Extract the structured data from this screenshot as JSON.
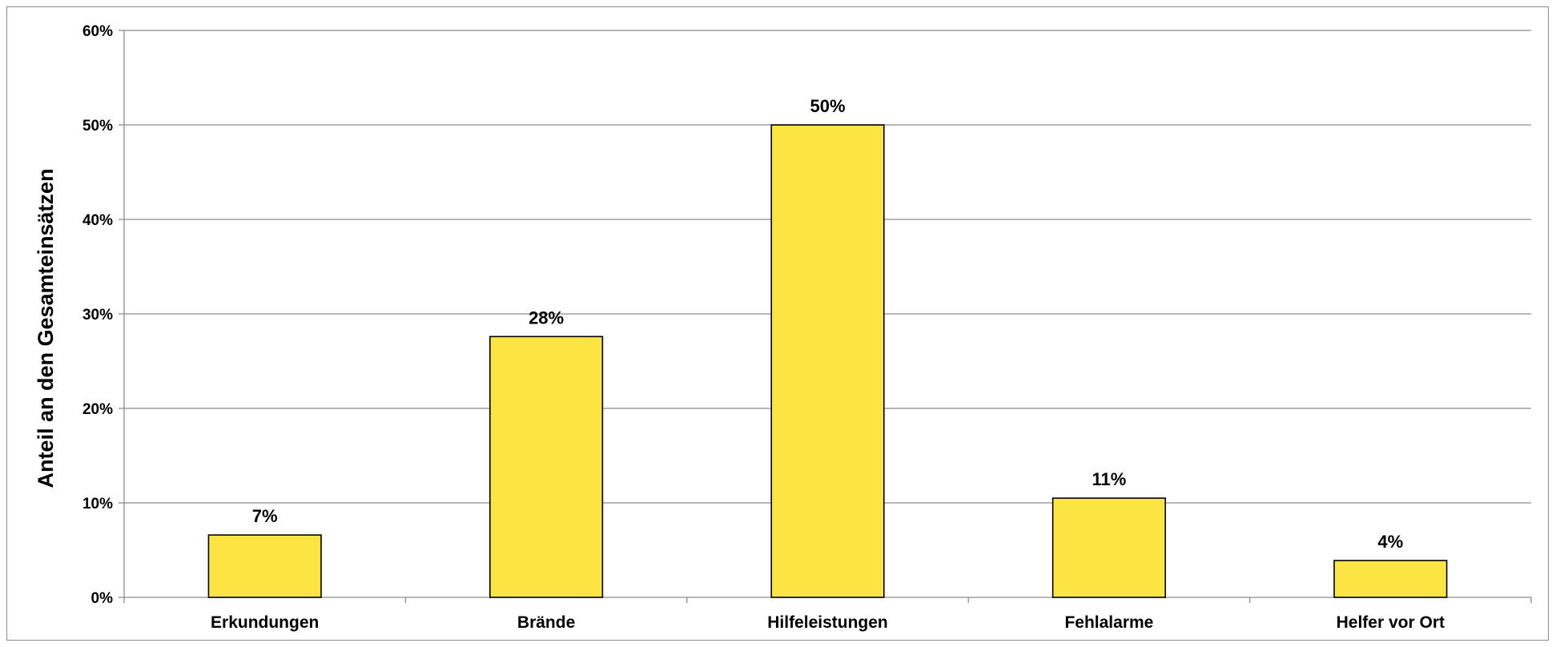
{
  "chart_data": {
    "type": "bar",
    "title": "",
    "xlabel": "",
    "ylabel": "Anteil an den Gesamteinsätzen",
    "categories": [
      "Erkundungen",
      "Brände",
      "Hilfeleistungen",
      "Fehlalarme",
      "Helfer vor Ort"
    ],
    "values": [
      0.066,
      0.276,
      0.5,
      0.105,
      0.039
    ],
    "data_labels": [
      "7%",
      "28%",
      "50%",
      "11%",
      "4%"
    ],
    "ylim": [
      0,
      0.6
    ],
    "yticks": [
      0,
      0.1,
      0.2,
      0.3,
      0.4,
      0.5,
      0.6
    ],
    "ytick_labels": [
      "0%",
      "10%",
      "20%",
      "30%",
      "40%",
      "50%",
      "60%"
    ],
    "grid": true,
    "legend": "none",
    "colors": {
      "bar_fill": "#fce443",
      "bar_stroke": "#000000",
      "grid": "#8c8c8c",
      "axis": "#8c8c8c"
    }
  }
}
